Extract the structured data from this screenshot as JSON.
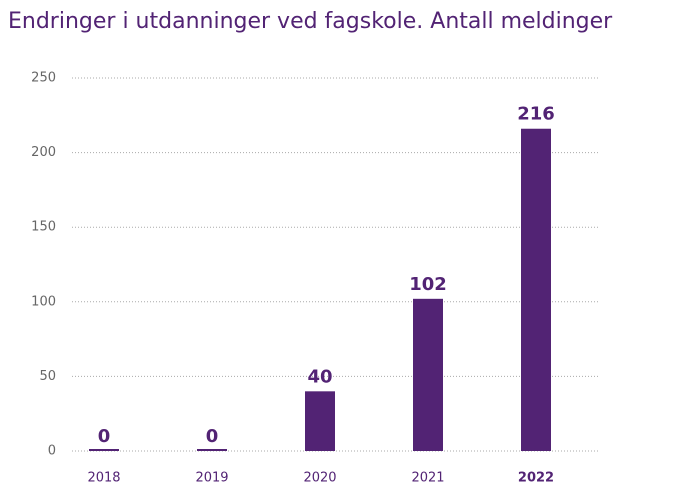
{
  "chart_data": {
    "type": "bar",
    "title": "Endringer i utdanninger ved fagskole. Antall meldinger",
    "categories": [
      "2018",
      "2019",
      "2020",
      "2021",
      "2022"
    ],
    "values": [
      0,
      0,
      40,
      102,
      216
    ],
    "color": "#522374",
    "ylim": [
      0,
      250
    ],
    "yticks": [
      0,
      50,
      100,
      150,
      200,
      250
    ],
    "grid": true
  }
}
